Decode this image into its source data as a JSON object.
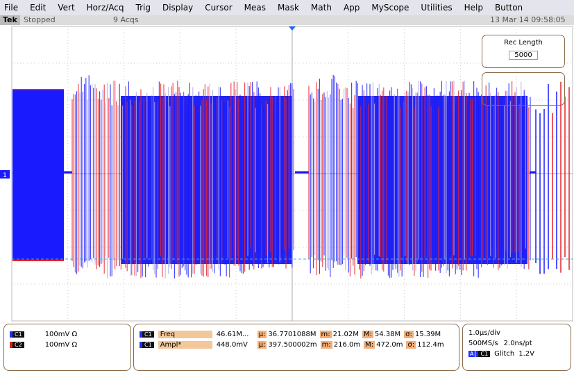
{
  "menu": [
    "File",
    "Edit",
    "Vert",
    "Horz/Acq",
    "Trig",
    "Display",
    "Cursor",
    "Meas",
    "Mask",
    "Math",
    "App",
    "MyScope",
    "Utilities",
    "Help",
    "Button"
  ],
  "status": {
    "brand": "Tek",
    "state": "Stopped",
    "acqs": "9 Acqs",
    "timestamp": "13 Mar 14 09:58:05"
  },
  "rec_length": {
    "label": "Rec Length",
    "value": "5000"
  },
  "channel_marker": "1",
  "channels": [
    {
      "badge": "C1",
      "setting": "100mV Ω"
    },
    {
      "badge": "C2",
      "setting": "100mV Ω"
    }
  ],
  "measurements": [
    {
      "badge": "C1",
      "name": "Freq",
      "value": "46.61M...",
      "stats": [
        {
          "key": "µ:",
          "value": "36.7701088M"
        },
        {
          "key": "m:",
          "value": "21.02M"
        },
        {
          "key": "M:",
          "value": "54.38M"
        },
        {
          "key": "σ:",
          "value": "15.39M"
        }
      ]
    },
    {
      "badge": "C1",
      "name": "Ampl*",
      "value": "448.0mV",
      "stats": [
        {
          "key": "µ:",
          "value": "397.500002m"
        },
        {
          "key": "m:",
          "value": "216.0m"
        },
        {
          "key": "M:",
          "value": "472.0m"
        },
        {
          "key": "σ:",
          "value": "112.4m"
        }
      ]
    }
  ],
  "timebase": {
    "scale": "1.0µs/div",
    "rate": "500MS/s",
    "resolution": "2.0ns/pt",
    "trigger_source": "A",
    "trigger_channel": "C1",
    "trigger_type": "Glitch",
    "trigger_level": "1.2V"
  }
}
